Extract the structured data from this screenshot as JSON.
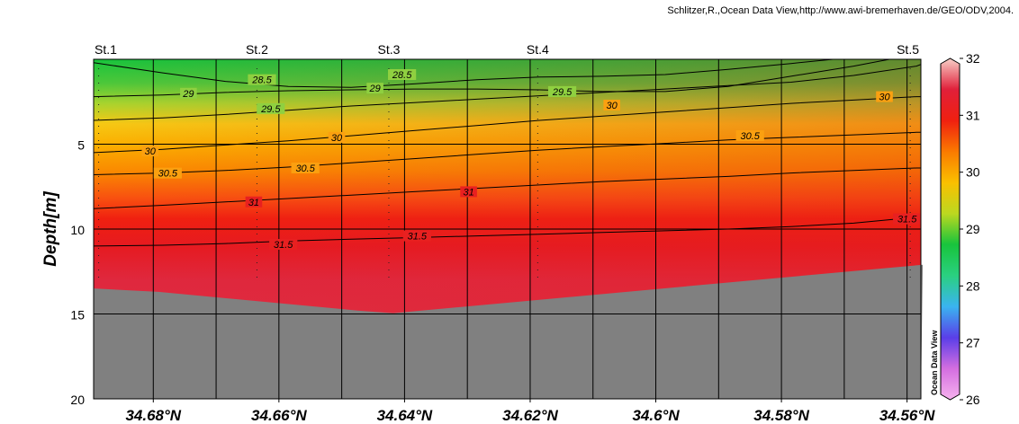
{
  "credit": "Schlitzer,R.,Ocean Data View,http://www.awi-bremerhaven.de/GEO/ODV,2004.",
  "watermark": "Ocean Data View",
  "chart_data": {
    "type": "heatmap",
    "title": "",
    "xlabel": "",
    "ylabel": "Depth[m]",
    "x_direction": "decreasing latitude left to right",
    "xlim": [
      34.6895,
      34.5578
    ],
    "ylim": [
      0,
      20
    ],
    "y_inverted": true,
    "grid": true,
    "x_ticks": [
      34.68,
      34.66,
      34.64,
      34.62,
      34.6,
      34.58,
      34.56
    ],
    "x_tick_labels": [
      "34.68°N",
      "34.66°N",
      "34.64°N",
      "34.62°N",
      "34.6°N",
      "34.58°N",
      "34.56°N"
    ],
    "y_ticks": [
      5,
      10,
      15,
      20
    ],
    "y_tick_labels": [
      "5",
      "10",
      "15",
      "20"
    ],
    "stations": [
      {
        "label": "St.1",
        "lat": 34.6887
      },
      {
        "label": "St.2",
        "lat": 34.6635
      },
      {
        "label": "St.3",
        "lat": 34.6425
      },
      {
        "label": "St.4",
        "lat": 34.6188
      },
      {
        "label": "St.5",
        "lat": 34.5595
      }
    ],
    "bottom_depth": {
      "lat": [
        34.6895,
        34.6792,
        34.6475,
        34.6418,
        34.5575
      ],
      "depth": [
        13.5,
        13.7,
        14.8,
        14.95,
        12.1
      ]
    },
    "colorbar": {
      "min": 26,
      "max": 32,
      "ticks": [
        32,
        31,
        30,
        29,
        28,
        27,
        26
      ],
      "tick_labels": [
        "32",
        "31",
        "30",
        "29",
        "28",
        "27",
        "26"
      ],
      "colors": [
        "#f6b2ee",
        "#d46ee0",
        "#5a3ee8",
        "#3ab4f0",
        "#2ad080",
        "#18c43c",
        "#bcd820",
        "#fac000",
        "#fa7a00",
        "#f02010",
        "#e0203a",
        "#f8d0c8"
      ]
    },
    "contours": [
      {
        "value": 28.5,
        "label": "28.5",
        "lat": [
          34.6895,
          34.6785,
          34.6685,
          34.6585,
          34.6485,
          34.6385,
          34.6285,
          34.6185,
          34.6085,
          34.5985,
          34.5885,
          34.5785,
          34.5718
        ],
        "depth": [
          0.2,
          0.8,
          1.3,
          1.6,
          1.65,
          1.45,
          1.2,
          1.05,
          1.0,
          0.9,
          0.6,
          0.25,
          0.0
        ],
        "label_at": [
          {
            "lat": 34.6627,
            "depth": 1.2
          },
          {
            "lat": 34.6404,
            "depth": 0.9
          }
        ]
      },
      {
        "value": 29.0,
        "label": "29",
        "lat": [
          34.6895,
          34.6785,
          34.6685,
          34.6585,
          34.6485,
          34.6385,
          34.6285,
          34.6185,
          34.6085,
          34.5985,
          34.5885,
          34.5785,
          34.5685,
          34.5628
        ],
        "depth": [
          2.2,
          2.1,
          1.95,
          1.85,
          1.8,
          1.75,
          1.75,
          1.8,
          1.9,
          1.9,
          1.6,
          1.0,
          0.4,
          0.0
        ],
        "label_at": [
          {
            "lat": 34.6744,
            "depth": 2.0
          },
          {
            "lat": 34.6447,
            "depth": 1.7
          }
        ]
      },
      {
        "value": 29.5,
        "label": "29.5",
        "lat": [
          34.6895,
          34.6785,
          34.6685,
          34.6585,
          34.6485,
          34.6385,
          34.6285,
          34.6185,
          34.6085,
          34.5985,
          34.5885,
          34.5785,
          34.5685,
          34.5585,
          34.5578
        ],
        "depth": [
          3.6,
          3.45,
          3.25,
          3.0,
          2.75,
          2.55,
          2.35,
          2.15,
          1.95,
          1.75,
          1.55,
          1.35,
          0.95,
          0.4,
          0.3
        ],
        "label_at": [
          {
            "lat": 34.6613,
            "depth": 2.9
          },
          {
            "lat": 34.6149,
            "depth": 1.9
          }
        ]
      },
      {
        "value": 30.0,
        "label": "30",
        "lat": [
          34.6895,
          34.6785,
          34.6685,
          34.6585,
          34.6485,
          34.6385,
          34.6285,
          34.6185,
          34.6085,
          34.5985,
          34.5885,
          34.5785,
          34.5685,
          34.5585,
          34.5578
        ],
        "depth": [
          5.5,
          5.3,
          5.05,
          4.8,
          4.5,
          4.2,
          3.9,
          3.6,
          3.35,
          3.1,
          2.85,
          2.6,
          2.4,
          2.2,
          2.2
        ],
        "label_at": [
          {
            "lat": 34.6805,
            "depth": 5.4
          },
          {
            "lat": 34.6508,
            "depth": 4.6
          },
          {
            "lat": 34.607,
            "depth": 2.7
          },
          {
            "lat": 34.5636,
            "depth": 2.2
          }
        ]
      },
      {
        "value": 30.5,
        "label": "30.5",
        "lat": [
          34.6895,
          34.6785,
          34.6685,
          34.6585,
          34.6485,
          34.6385,
          34.6285,
          34.6185,
          34.6085,
          34.5985,
          34.5885,
          34.5785,
          34.5685,
          34.5585,
          34.5578
        ],
        "depth": [
          6.8,
          6.7,
          6.55,
          6.35,
          6.1,
          5.85,
          5.6,
          5.35,
          5.15,
          4.95,
          4.75,
          4.6,
          4.45,
          4.3,
          4.3
        ],
        "label_at": [
          {
            "lat": 34.6777,
            "depth": 6.7
          },
          {
            "lat": 34.6558,
            "depth": 6.4
          },
          {
            "lat": 34.585,
            "depth": 4.5
          }
        ]
      },
      {
        "value": 31.0,
        "label": "31",
        "lat": [
          34.6895,
          34.6785,
          34.6685,
          34.6585,
          34.6485,
          34.6385,
          34.6285,
          34.6185,
          34.6085,
          34.5985,
          34.5885,
          34.5785,
          34.5685,
          34.5585,
          34.5578
        ],
        "depth": [
          8.8,
          8.6,
          8.4,
          8.2,
          8.0,
          7.8,
          7.6,
          7.4,
          7.2,
          7.05,
          6.9,
          6.7,
          6.55,
          6.4,
          6.4
        ],
        "label_at": [
          {
            "lat": 34.664,
            "depth": 8.4
          },
          {
            "lat": 34.6298,
            "depth": 7.8
          }
        ]
      },
      {
        "value": 31.5,
        "label": "31.5",
        "lat": [
          34.6895,
          34.6785,
          34.6685,
          34.6585,
          34.6485,
          34.6385,
          34.6285,
          34.6185,
          34.6085,
          34.5985,
          34.5885,
          34.5785,
          34.5685,
          34.5585,
          34.5578
        ],
        "depth": [
          11.0,
          10.95,
          10.85,
          10.7,
          10.6,
          10.5,
          10.4,
          10.3,
          10.2,
          10.1,
          10.0,
          9.85,
          9.65,
          9.3,
          9.3
        ],
        "label_at": [
          {
            "lat": 34.6593,
            "depth": 10.9
          },
          {
            "lat": 34.638,
            "depth": 10.4
          },
          {
            "lat": 34.56,
            "depth": 9.4
          }
        ]
      }
    ]
  }
}
